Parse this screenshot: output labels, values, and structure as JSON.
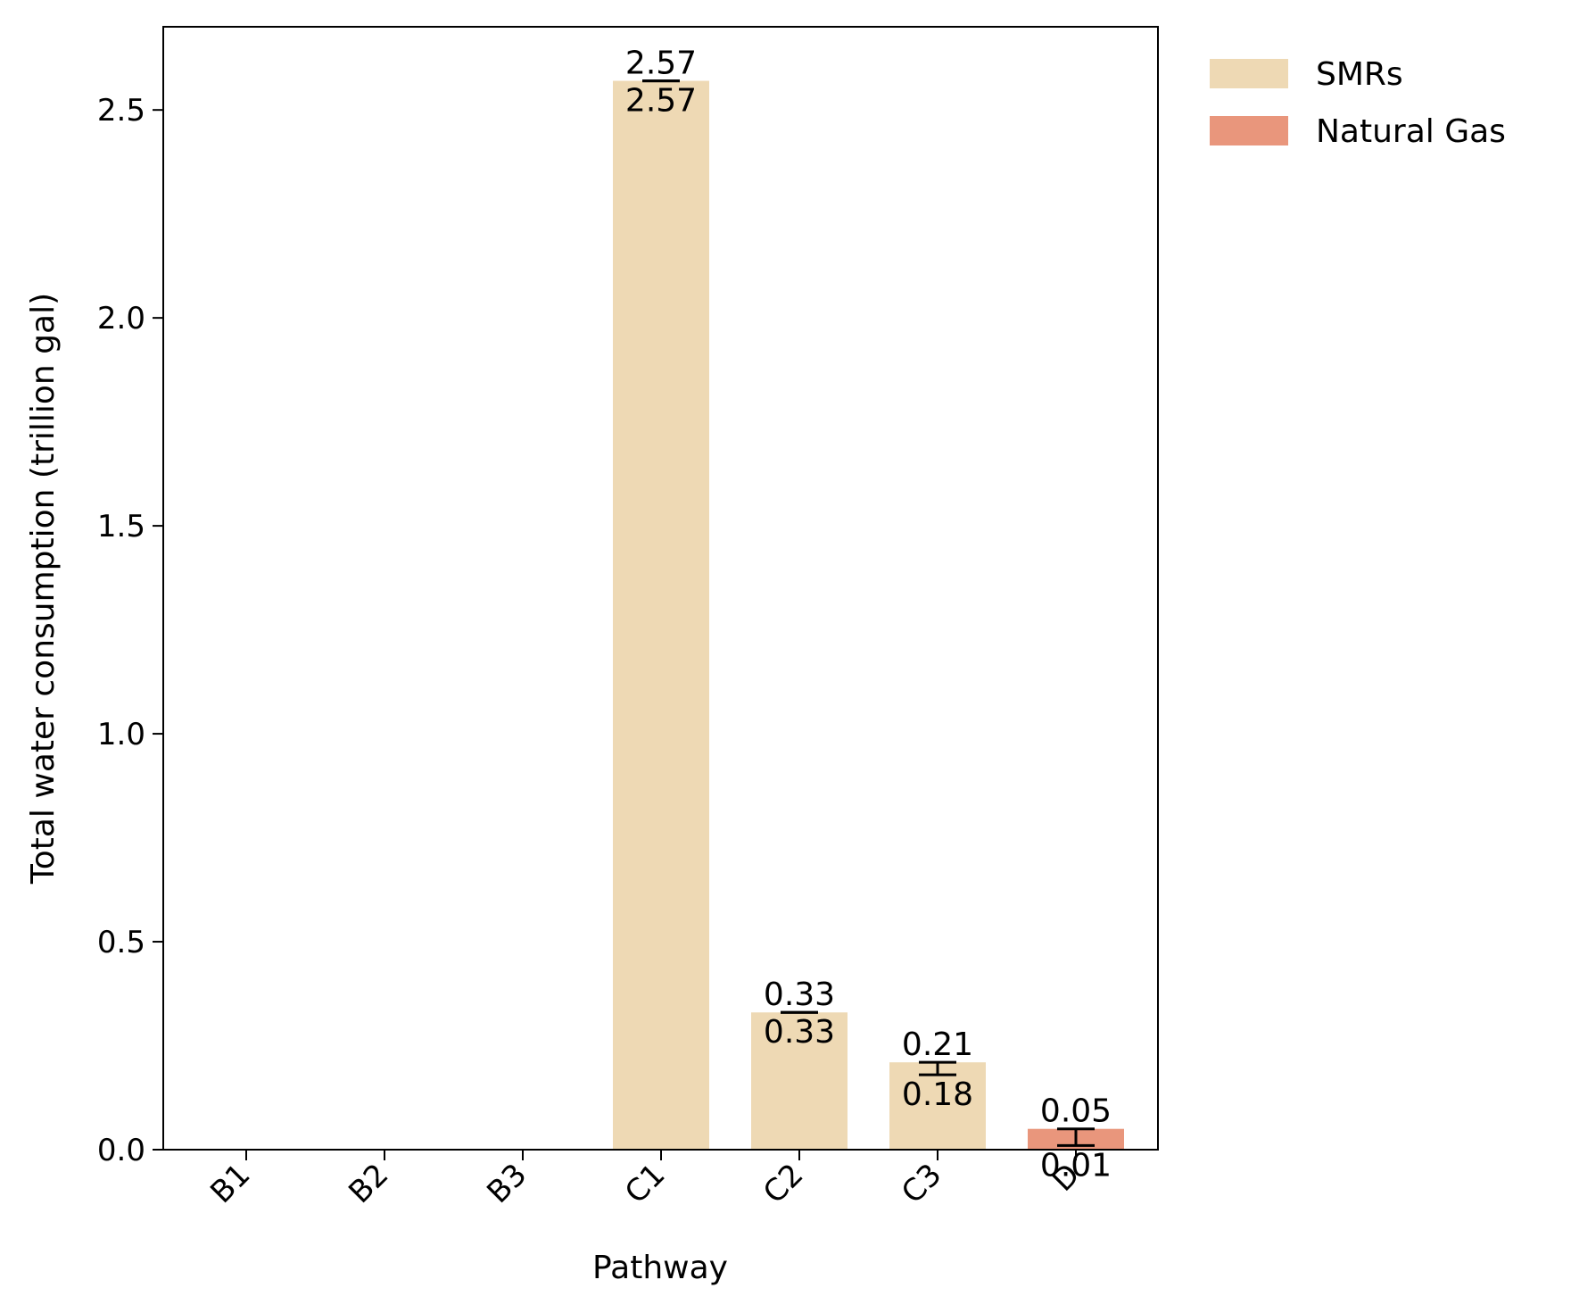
{
  "chart_data": {
    "type": "bar",
    "title": "",
    "xlabel": "Pathway",
    "ylabel": "Total water consumption (trillion gal)",
    "categories": [
      "B1",
      "B2",
      "B3",
      "C1",
      "C2",
      "C3",
      "D"
    ],
    "ylim": [
      0,
      2.7
    ],
    "yticks": [
      0.0,
      0.5,
      1.0,
      1.5,
      2.0,
      2.5
    ],
    "ytick_labels": [
      "0.0",
      "0.5",
      "1.0",
      "1.5",
      "2.0",
      "2.5"
    ],
    "grid": false,
    "legend_position": "outside-top-right",
    "series": [
      {
        "name": "SMRs",
        "color": "#eed9b4",
        "values": [
          0,
          0,
          0,
          2.57,
          0.33,
          0.21,
          0
        ]
      },
      {
        "name": "Natural Gas",
        "color": "#e9967c",
        "values": [
          0,
          0,
          0,
          0,
          0,
          0,
          0.05
        ]
      }
    ],
    "error_bars": [
      {
        "category": "C1",
        "low": 2.57,
        "high": 2.57,
        "low_label": "2.57",
        "high_label": "2.57"
      },
      {
        "category": "C2",
        "low": 0.33,
        "high": 0.33,
        "low_label": "0.33",
        "high_label": "0.33"
      },
      {
        "category": "C3",
        "low": 0.18,
        "high": 0.21,
        "low_label": "0.18",
        "high_label": "0.21"
      },
      {
        "category": "D",
        "low": 0.01,
        "high": 0.05,
        "low_label": "0.01",
        "high_label": "0.05"
      }
    ]
  }
}
